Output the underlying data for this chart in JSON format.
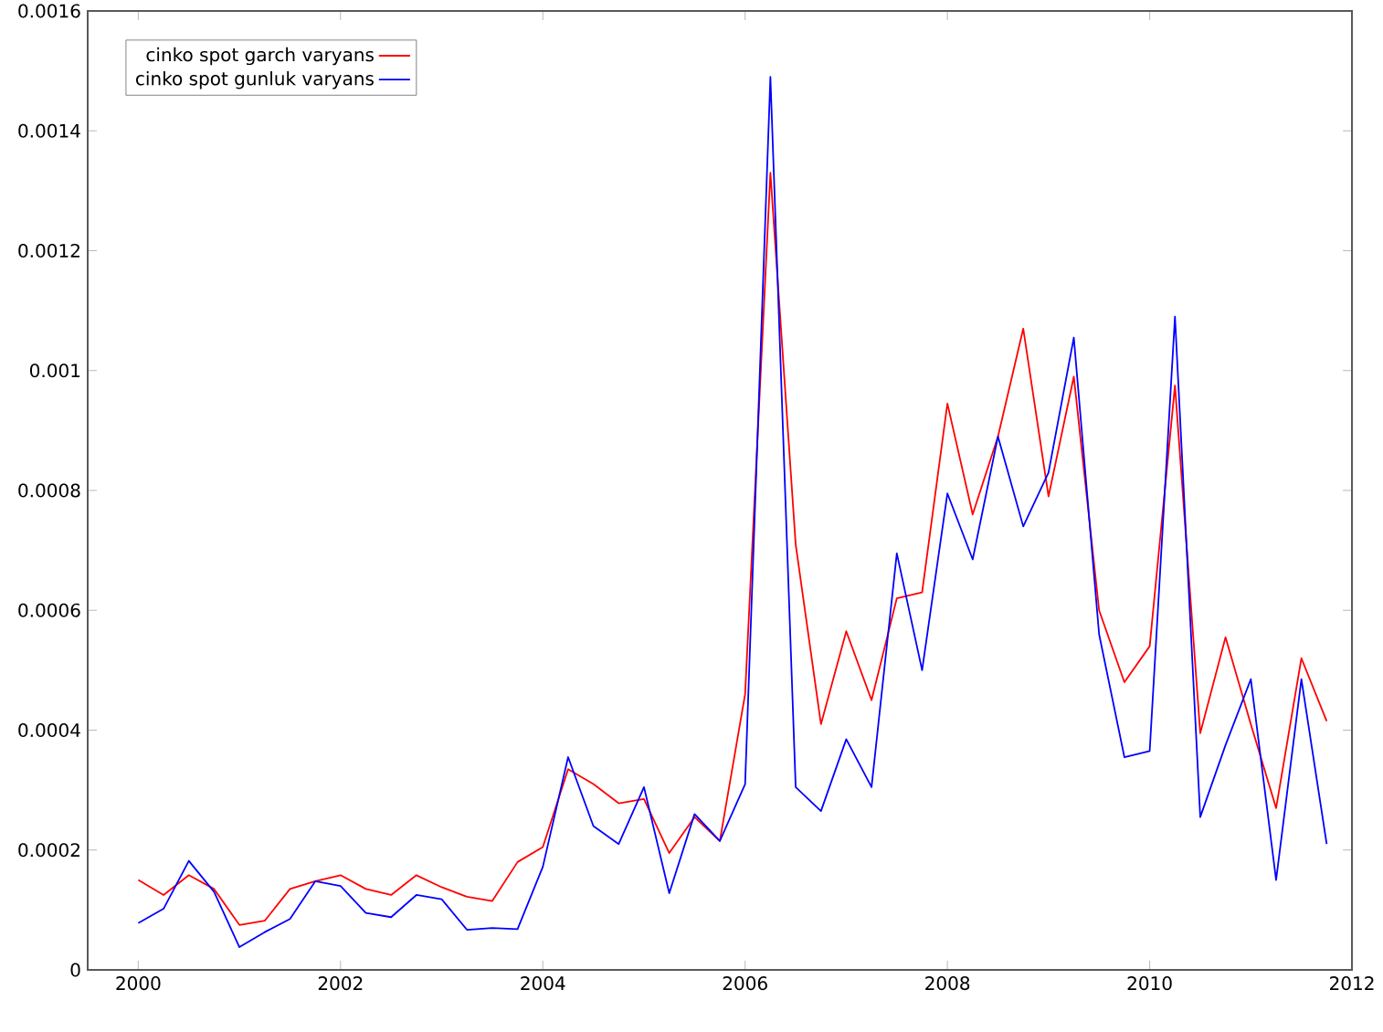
{
  "chart_data": {
    "type": "line",
    "x": [
      2000,
      2000.25,
      2000.5,
      2000.75,
      2001,
      2001.25,
      2001.5,
      2001.75,
      2002,
      2002.25,
      2002.5,
      2002.75,
      2003,
      2003.25,
      2003.5,
      2003.75,
      2004,
      2004.25,
      2004.5,
      2004.75,
      2005,
      2005.25,
      2005.5,
      2005.75,
      2006,
      2006.25,
      2006.5,
      2006.75,
      2007,
      2007.25,
      2007.5,
      2007.75,
      2008,
      2008.25,
      2008.5,
      2008.75,
      2009,
      2009.25,
      2009.5,
      2009.75,
      2010,
      2010.25,
      2010.5,
      2010.75,
      2011,
      2011.25,
      2011.5,
      2011.75
    ],
    "series": [
      {
        "name": "cinko spot garch varyans",
        "color": "#ff0000",
        "values": [
          0.00015,
          0.000125,
          0.000158,
          0.000135,
          7.5e-05,
          8.2e-05,
          0.000135,
          0.000148,
          0.000158,
          0.000135,
          0.000125,
          0.000158,
          0.000138,
          0.000122,
          0.000115,
          0.00018,
          0.000205,
          0.000335,
          0.00031,
          0.000278,
          0.000285,
          0.000195,
          0.000255,
          0.000215,
          0.00046,
          0.00133,
          0.00071,
          0.00041,
          0.000565,
          0.00045,
          0.00062,
          0.00063,
          0.000945,
          0.00076,
          0.00089,
          0.00107,
          0.00079,
          0.00099,
          0.0006,
          0.00048,
          0.00054,
          0.000975,
          0.000395,
          0.000555,
          0.00041,
          0.00027,
          0.00052,
          0.000415
        ]
      },
      {
        "name": "cinko spot gunluk varyans",
        "color": "#0000ff",
        "values": [
          7.8e-05,
          0.000102,
          0.000182,
          0.00013,
          3.8e-05,
          6.3e-05,
          8.5e-05,
          0.000148,
          0.00014,
          9.5e-05,
          8.8e-05,
          0.000125,
          0.000118,
          6.7e-05,
          7e-05,
          6.8e-05,
          0.000172,
          0.000355,
          0.00024,
          0.00021,
          0.000305,
          0.000128,
          0.00026,
          0.000215,
          0.00031,
          0.00149,
          0.000305,
          0.000265,
          0.000385,
          0.000305,
          0.000695,
          0.0005,
          0.000795,
          0.000685,
          0.00089,
          0.00074,
          0.00083,
          0.001055,
          0.00056,
          0.000355,
          0.000365,
          0.00109,
          0.000255,
          0.000375,
          0.000485,
          0.00015,
          0.000485,
          0.00021
        ]
      }
    ],
    "xlim": [
      1999.5,
      2012
    ],
    "ylim": [
      0,
      0.0016
    ],
    "xticks": [
      2000,
      2002,
      2004,
      2006,
      2008,
      2010,
      2012
    ],
    "yticks": [
      0,
      0.0002,
      0.0004,
      0.0006,
      0.0008,
      0.001,
      0.0012,
      0.0014,
      0.0016
    ],
    "legend": "top left"
  }
}
